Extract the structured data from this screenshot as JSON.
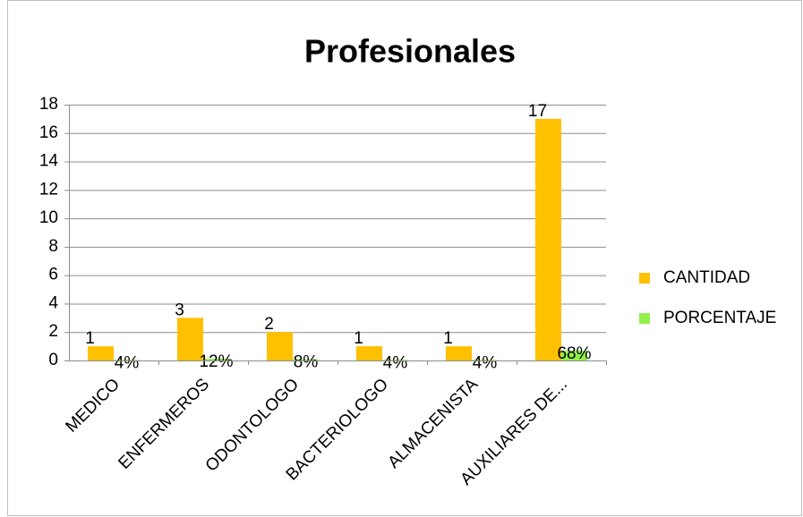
{
  "chart_data": {
    "type": "bar",
    "title": "Profesionales",
    "categories": [
      "MEDICO",
      "ENFERMEROS",
      "ODONTOLOGO",
      "BACTERIOLOGO",
      "ALMACENISTA",
      "AUXILIARES DE..."
    ],
    "series": [
      {
        "name": "CANTIDAD",
        "color": "#ffc000",
        "values": [
          1,
          3,
          2,
          1,
          1,
          17
        ]
      },
      {
        "name": "PORCENTAJE",
        "color": "#92f04a",
        "values": [
          0.04,
          0.12,
          0.08,
          0.04,
          0.04,
          0.68
        ],
        "value_labels": [
          "4%",
          "12%",
          "8%",
          "4%",
          "4%",
          "68%"
        ]
      }
    ],
    "ylim": [
      0,
      18
    ],
    "yticks": [
      0,
      2,
      4,
      6,
      8,
      10,
      12,
      14,
      16,
      18
    ],
    "grid": true,
    "legend": "right"
  }
}
